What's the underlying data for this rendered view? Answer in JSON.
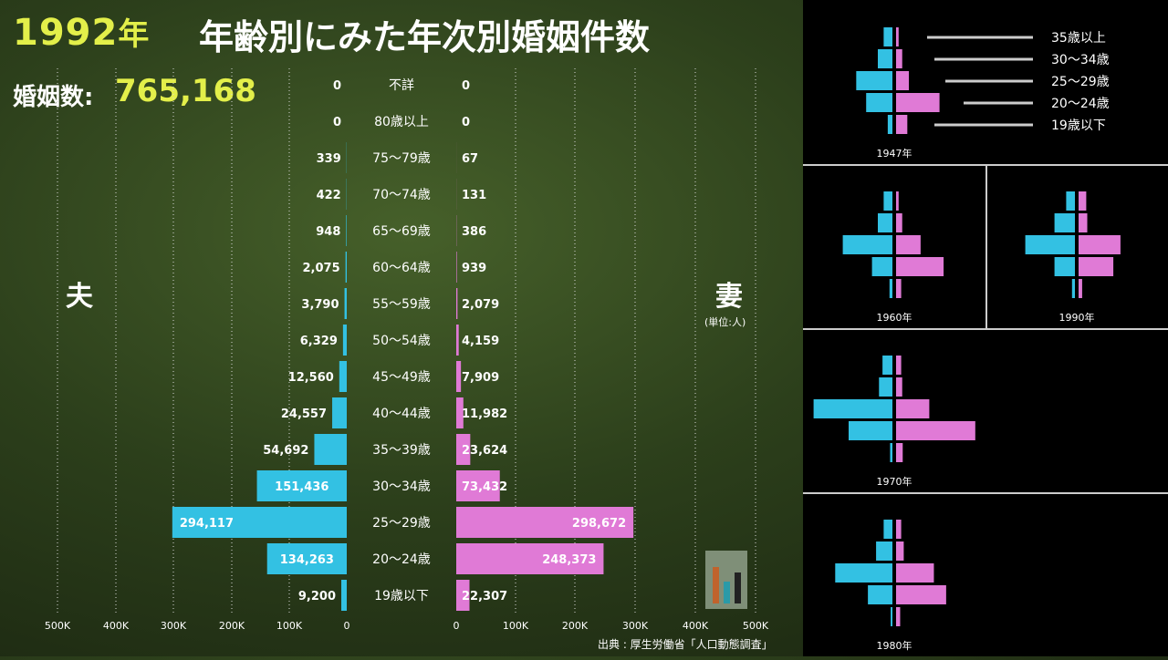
{
  "header": {
    "year": "1992",
    "year_suffix": "年",
    "title": "年齢別にみた年次別婚姻件数",
    "total_label": "婚姻数:",
    "total_value": "765,168"
  },
  "labels": {
    "husband": "夫",
    "wife": "妻",
    "unit": "(単位:人)",
    "source": "出典 : 厚生労働省「人口動態調査」"
  },
  "colors": {
    "husband": "#33c1e3",
    "wife": "#e07ad6",
    "year": "#e3ef4a"
  },
  "chart_data": {
    "type": "bar",
    "title": "年齢別にみた年次別婚姻件数",
    "categories": [
      "不詳",
      "80歳以上",
      "75〜79歳",
      "70〜74歳",
      "65〜69歳",
      "60〜64歳",
      "55〜59歳",
      "50〜54歳",
      "45〜49歳",
      "40〜44歳",
      "35〜39歳",
      "30〜34歳",
      "25〜29歳",
      "20〜24歳",
      "19歳以下"
    ],
    "series": [
      {
        "name": "夫",
        "values": [
          0,
          0,
          339,
          422,
          948,
          2075,
          3790,
          6329,
          12560,
          24557,
          54692,
          151436,
          294117,
          134263,
          9200
        ],
        "labels": [
          "0",
          "0",
          "339",
          "422",
          "948",
          "2,075",
          "3,790",
          "6,329",
          "12,560",
          "24,557",
          "54,692",
          "151,436",
          "294,117",
          "134,263",
          "9,200"
        ]
      },
      {
        "name": "妻",
        "values": [
          0,
          0,
          67,
          131,
          386,
          939,
          2079,
          4159,
          7909,
          11982,
          23624,
          73432,
          298672,
          248373,
          22307
        ],
        "labels": [
          "0",
          "0",
          "67",
          "131",
          "386",
          "939",
          "2,079",
          "4,159",
          "7,909",
          "11,982",
          "23,624",
          "73,432",
          "298,672",
          "248,373",
          "22,307"
        ]
      }
    ],
    "x_ticks_left": [
      "500K",
      "400K",
      "300K",
      "200K",
      "100K",
      "0"
    ],
    "x_ticks_right": [
      "0",
      "100K",
      "200K",
      "300K",
      "400K",
      "500K"
    ],
    "xlim": [
      0,
      500000
    ],
    "grid": true,
    "legend": "none"
  },
  "mini_charts": {
    "legend": [
      "35歳以上",
      "30〜34歳",
      "25〜29歳",
      "20〜24歳",
      "19歳以下"
    ],
    "panels": [
      {
        "year": "1947年",
        "husband": [
          0.15,
          0.25,
          0.62,
          0.45,
          0.08
        ],
        "wife": [
          0.05,
          0.12,
          0.25,
          0.85,
          0.22
        ]
      },
      {
        "year": "1960年",
        "husband": [
          0.15,
          0.25,
          0.85,
          0.35,
          0.05
        ],
        "wife": [
          0.05,
          0.12,
          0.48,
          0.93,
          0.1
        ]
      },
      {
        "year": "1990年",
        "husband": [
          0.15,
          0.35,
          0.85,
          0.35,
          0.05
        ],
        "wife": [
          0.15,
          0.17,
          0.82,
          0.68,
          0.07
        ]
      },
      {
        "year": "1970年",
        "husband": [
          0.17,
          0.23,
          1.35,
          0.75,
          0.04
        ],
        "wife": [
          0.1,
          0.12,
          0.65,
          1.55,
          0.13
        ]
      },
      {
        "year": "1980年",
        "husband": [
          0.15,
          0.28,
          0.98,
          0.42,
          0.03
        ],
        "wife": [
          0.1,
          0.15,
          0.74,
          0.98,
          0.08
        ]
      }
    ]
  }
}
